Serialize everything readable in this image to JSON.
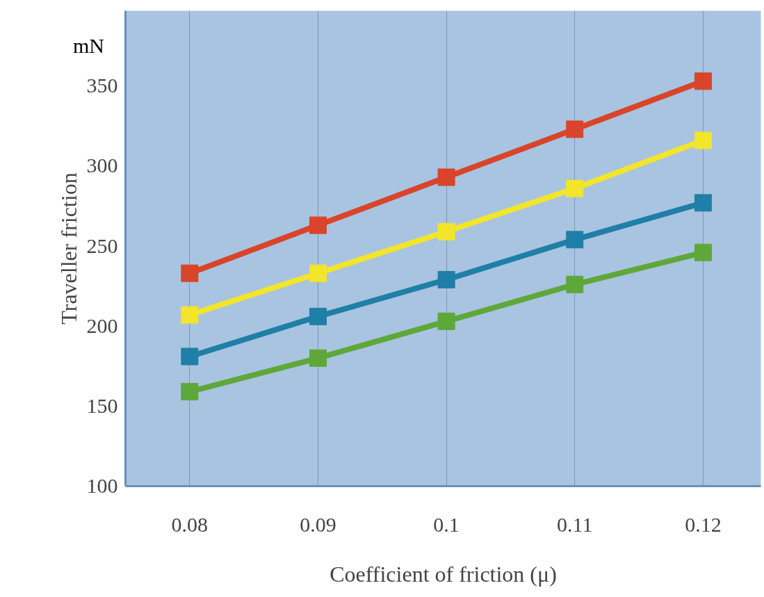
{
  "chart_data": {
    "type": "line",
    "xlabel": "Coefficient of friction (μ)",
    "ylabel": "Traveller friction",
    "annotations": [
      "mN"
    ],
    "x": [
      0.08,
      0.09,
      0.1,
      0.11,
      0.12
    ],
    "series": [
      {
        "color": "#d9442a",
        "values": [
          233,
          263,
          293,
          323,
          353
        ]
      },
      {
        "color": "#f2e52a",
        "values": [
          207,
          233,
          259,
          286,
          316
        ]
      },
      {
        "color": "#1f7fa6",
        "values": [
          181,
          206,
          229,
          254,
          277
        ]
      },
      {
        "color": "#5ea83a",
        "values": [
          159,
          180,
          203,
          226,
          246
        ]
      }
    ],
    "xlim": [
      0.075,
      0.1245
    ],
    "ylim": [
      100,
      397
    ],
    "xticks": [
      0.08,
      0.09,
      0.1,
      0.11,
      0.12
    ],
    "yticks": [
      100,
      150,
      200,
      250,
      300,
      350
    ],
    "grid": "x",
    "marker": "square",
    "line_style": "solid"
  }
}
